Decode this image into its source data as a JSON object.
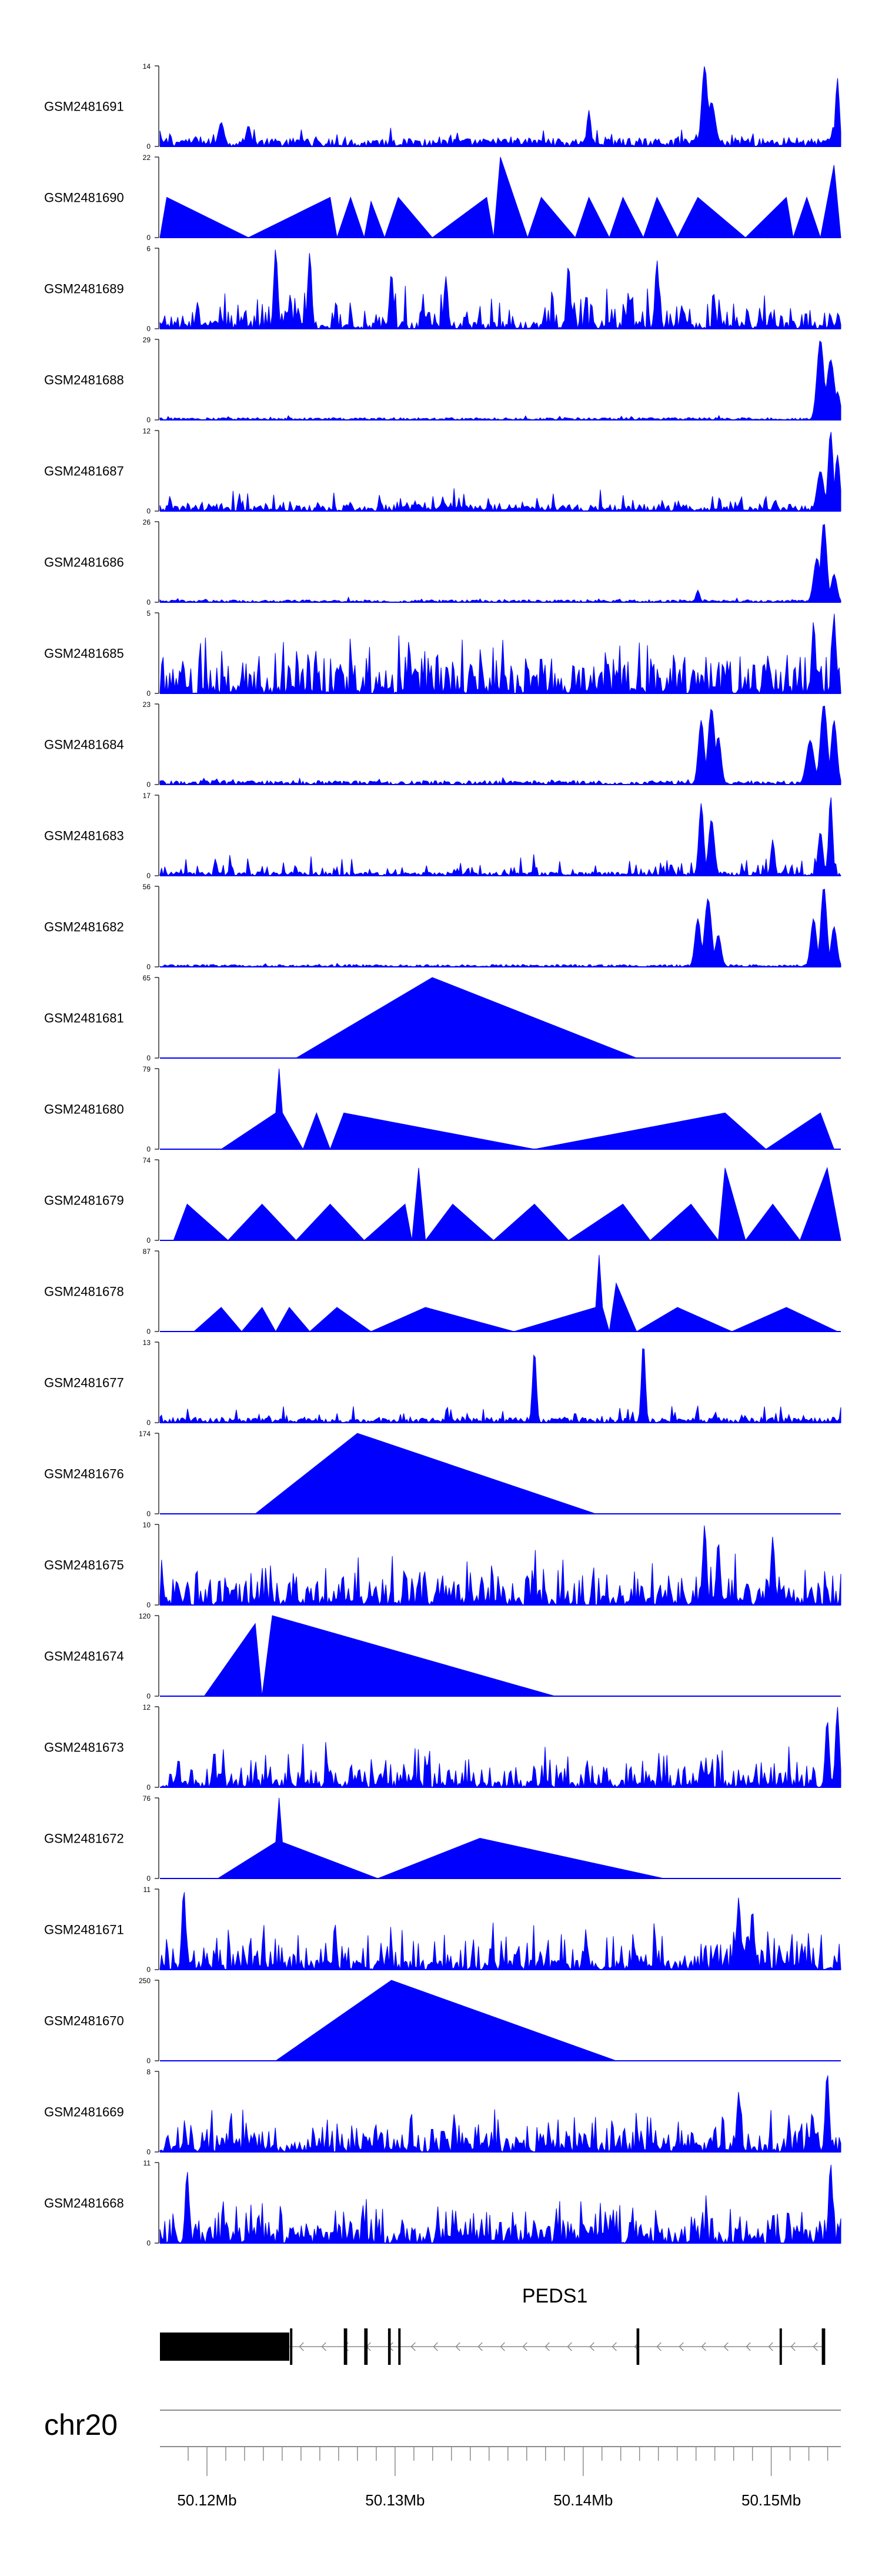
{
  "chart_data": {
    "type": "area",
    "title": "",
    "fill_color": "#0000ff",
    "genomic_range_mb": [
      50.1175,
      50.1537
    ],
    "tracks": [
      {
        "name": "GSM2481691",
        "ymax": 14,
        "ymin": 0,
        "style": "noise",
        "base": 0.1,
        "spike_rate": 0.2,
        "spike_height": 0.25,
        "peaks": [
          [
            0.09,
            0.3,
            0.006
          ],
          [
            0.13,
            0.26,
            0.005
          ],
          [
            0.63,
            0.45,
            0.004
          ],
          [
            0.8,
            1.0,
            0.006
          ],
          [
            0.81,
            0.55,
            0.008
          ],
          [
            0.995,
            0.85,
            0.004
          ]
        ]
      },
      {
        "name": "GSM2481690",
        "ymax": 22,
        "ymin": 0,
        "style": "tri",
        "pts": [
          [
            0.0,
            0
          ],
          [
            0.01,
            0.5
          ],
          [
            0.13,
            0
          ],
          [
            0.25,
            0.5
          ],
          [
            0.26,
            0
          ],
          [
            0.28,
            0.5
          ],
          [
            0.3,
            0
          ],
          [
            0.31,
            0.45
          ],
          [
            0.33,
            0
          ],
          [
            0.35,
            0.5
          ],
          [
            0.4,
            0
          ],
          [
            0.48,
            0.5
          ],
          [
            0.49,
            0
          ],
          [
            0.5,
            1.0
          ],
          [
            0.54,
            0
          ],
          [
            0.56,
            0.5
          ],
          [
            0.61,
            0
          ],
          [
            0.63,
            0.5
          ],
          [
            0.66,
            0
          ],
          [
            0.68,
            0.5
          ],
          [
            0.71,
            0
          ],
          [
            0.73,
            0.5
          ],
          [
            0.76,
            0
          ],
          [
            0.79,
            0.5
          ],
          [
            0.86,
            0
          ],
          [
            0.92,
            0.5
          ],
          [
            0.93,
            0
          ],
          [
            0.95,
            0.5
          ],
          [
            0.97,
            0
          ],
          [
            0.99,
            0.9
          ],
          [
            1.0,
            0
          ]
        ]
      },
      {
        "name": "GSM2481689",
        "ymax": 6,
        "ymin": 0,
        "style": "noise",
        "base": 0.1,
        "spike_rate": 0.35,
        "spike_height": 0.55,
        "peaks": [
          [
            0.17,
            1.0,
            0.004
          ],
          [
            0.22,
            0.95,
            0.004
          ],
          [
            0.34,
            0.7,
            0.004
          ],
          [
            0.42,
            0.65,
            0.004
          ],
          [
            0.6,
            0.8,
            0.004
          ],
          [
            0.73,
            0.85,
            0.004
          ]
        ]
      },
      {
        "name": "GSM2481688",
        "ymax": 29,
        "ymin": 0,
        "style": "noise",
        "base": 0.03,
        "spike_rate": 0.06,
        "spike_height": 0.08,
        "peaks": [
          [
            0.97,
            1.0,
            0.007
          ],
          [
            0.985,
            0.75,
            0.008
          ],
          [
            0.995,
            0.35,
            0.006
          ]
        ]
      },
      {
        "name": "GSM2481687",
        "ymax": 12,
        "ymin": 0,
        "style": "noise",
        "base": 0.08,
        "spike_rate": 0.22,
        "spike_height": 0.3,
        "peaks": [
          [
            0.97,
            0.5,
            0.007
          ],
          [
            0.985,
            1.0,
            0.005
          ],
          [
            0.995,
            0.7,
            0.005
          ]
        ]
      },
      {
        "name": "GSM2481686",
        "ymax": 26,
        "ymin": 0,
        "style": "noise",
        "base": 0.03,
        "spike_rate": 0.06,
        "spike_height": 0.1,
        "peaks": [
          [
            0.79,
            0.15,
            0.004
          ],
          [
            0.965,
            0.55,
            0.007
          ],
          [
            0.975,
            1.0,
            0.006
          ],
          [
            0.99,
            0.35,
            0.006
          ]
        ]
      },
      {
        "name": "GSM2481685",
        "ymax": 5,
        "ymin": 0,
        "style": "noise",
        "base": 0.1,
        "spike_rate": 0.55,
        "spike_height": 0.75,
        "peaks": [
          [
            0.96,
            0.9,
            0.004
          ],
          [
            0.99,
            1.0,
            0.004
          ]
        ]
      },
      {
        "name": "GSM2481684",
        "ymax": 23,
        "ymin": 0,
        "style": "noise",
        "base": 0.05,
        "spike_rate": 0.08,
        "spike_height": 0.1,
        "peaks": [
          [
            0.795,
            0.8,
            0.006
          ],
          [
            0.81,
            0.95,
            0.007
          ],
          [
            0.82,
            0.6,
            0.006
          ],
          [
            0.955,
            0.55,
            0.008
          ],
          [
            0.975,
            1.0,
            0.007
          ],
          [
            0.99,
            0.8,
            0.006
          ]
        ]
      },
      {
        "name": "GSM2481683",
        "ymax": 17,
        "ymin": 0,
        "style": "noise",
        "base": 0.05,
        "spike_rate": 0.22,
        "spike_height": 0.3,
        "peaks": [
          [
            0.795,
            0.9,
            0.005
          ],
          [
            0.81,
            0.7,
            0.006
          ],
          [
            0.9,
            0.45,
            0.004
          ],
          [
            0.97,
            0.55,
            0.005
          ],
          [
            0.985,
            1.0,
            0.004
          ]
        ]
      },
      {
        "name": "GSM2481682",
        "ymax": 56,
        "ymin": 0,
        "style": "noise",
        "base": 0.03,
        "spike_rate": 0.05,
        "spike_height": 0.06,
        "peaks": [
          [
            0.79,
            0.6,
            0.006
          ],
          [
            0.805,
            0.85,
            0.007
          ],
          [
            0.82,
            0.4,
            0.006
          ],
          [
            0.96,
            0.6,
            0.006
          ],
          [
            0.975,
            1.0,
            0.006
          ],
          [
            0.99,
            0.5,
            0.006
          ]
        ]
      },
      {
        "name": "GSM2481681",
        "ymax": 65,
        "ymin": 0,
        "style": "tri",
        "pts": [
          [
            0.2,
            0
          ],
          [
            0.4,
            1.0
          ],
          [
            0.7,
            0
          ]
        ]
      },
      {
        "name": "GSM2481680",
        "ymax": 79,
        "ymin": 0,
        "style": "tri",
        "pts": [
          [
            0.09,
            0
          ],
          [
            0.17,
            0.45
          ],
          [
            0.175,
            1.0
          ],
          [
            0.18,
            0.45
          ],
          [
            0.21,
            0
          ],
          [
            0.23,
            0.45
          ],
          [
            0.25,
            0
          ],
          [
            0.27,
            0.45
          ],
          [
            0.55,
            0
          ],
          [
            0.83,
            0.45
          ],
          [
            0.89,
            0
          ],
          [
            0.97,
            0.45
          ],
          [
            0.99,
            0
          ]
        ]
      },
      {
        "name": "GSM2481679",
        "ymax": 74,
        "ymin": 0,
        "style": "tri",
        "pts": [
          [
            0.02,
            0
          ],
          [
            0.04,
            0.45
          ],
          [
            0.1,
            0
          ],
          [
            0.15,
            0.45
          ],
          [
            0.2,
            0
          ],
          [
            0.25,
            0.45
          ],
          [
            0.3,
            0
          ],
          [
            0.36,
            0.45
          ],
          [
            0.37,
            0
          ],
          [
            0.38,
            0.9
          ],
          [
            0.39,
            0
          ],
          [
            0.43,
            0.45
          ],
          [
            0.49,
            0
          ],
          [
            0.55,
            0.45
          ],
          [
            0.6,
            0
          ],
          [
            0.68,
            0.45
          ],
          [
            0.72,
            0
          ],
          [
            0.78,
            0.45
          ],
          [
            0.82,
            0
          ],
          [
            0.83,
            0.9
          ],
          [
            0.86,
            0
          ],
          [
            0.9,
            0.45
          ],
          [
            0.94,
            0
          ],
          [
            0.98,
            0.9
          ],
          [
            1.0,
            0
          ]
        ]
      },
      {
        "name": "GSM2481678",
        "ymax": 87,
        "ymin": 0,
        "style": "tri",
        "pts": [
          [
            0.05,
            0
          ],
          [
            0.09,
            0.3
          ],
          [
            0.12,
            0
          ],
          [
            0.15,
            0.3
          ],
          [
            0.17,
            0
          ],
          [
            0.19,
            0.3
          ],
          [
            0.22,
            0
          ],
          [
            0.26,
            0.3
          ],
          [
            0.31,
            0
          ],
          [
            0.39,
            0.3
          ],
          [
            0.52,
            0
          ],
          [
            0.64,
            0.3
          ],
          [
            0.645,
            0.95
          ],
          [
            0.65,
            0.3
          ],
          [
            0.66,
            0
          ],
          [
            0.67,
            0.6
          ],
          [
            0.7,
            0
          ],
          [
            0.76,
            0.3
          ],
          [
            0.84,
            0
          ],
          [
            0.92,
            0.3
          ],
          [
            0.995,
            0
          ]
        ]
      },
      {
        "name": "GSM2481677",
        "ymax": 13,
        "ymin": 0,
        "style": "noise",
        "base": 0.06,
        "spike_rate": 0.18,
        "spike_height": 0.25,
        "peaks": [
          [
            0.55,
            0.9,
            0.004
          ],
          [
            0.71,
            1.0,
            0.004
          ]
        ]
      },
      {
        "name": "GSM2481676",
        "ymax": 174,
        "ymin": 0,
        "style": "tri",
        "pts": [
          [
            0.14,
            0
          ],
          [
            0.29,
            1.0
          ],
          [
            0.64,
            0
          ]
        ]
      },
      {
        "name": "GSM2481675",
        "ymax": 10,
        "ymin": 0,
        "style": "noise",
        "base": 0.12,
        "spike_rate": 0.45,
        "spike_height": 0.7,
        "peaks": [
          [
            0.8,
            1.0,
            0.004
          ],
          [
            0.82,
            0.8,
            0.004
          ],
          [
            0.9,
            0.85,
            0.004
          ]
        ]
      },
      {
        "name": "GSM2481674",
        "ymax": 120,
        "ymin": 0,
        "style": "tri",
        "pts": [
          [
            0.065,
            0
          ],
          [
            0.14,
            0.9
          ],
          [
            0.15,
            0
          ],
          [
            0.165,
            1.0
          ],
          [
            0.58,
            0
          ]
        ]
      },
      {
        "name": "GSM2481673",
        "ymax": 12,
        "ymin": 0,
        "style": "noise",
        "base": 0.1,
        "spike_rate": 0.4,
        "spike_height": 0.6,
        "peaks": [
          [
            0.98,
            0.85,
            0.004
          ],
          [
            0.995,
            1.0,
            0.004
          ]
        ]
      },
      {
        "name": "GSM2481672",
        "ymax": 76,
        "ymin": 0,
        "style": "tri",
        "pts": [
          [
            0.085,
            0
          ],
          [
            0.17,
            0.45
          ],
          [
            0.175,
            1.0
          ],
          [
            0.18,
            0.45
          ],
          [
            0.32,
            0
          ],
          [
            0.47,
            0.5
          ],
          [
            0.74,
            0
          ]
        ]
      },
      {
        "name": "GSM2481671",
        "ymax": 11,
        "ymin": 0,
        "style": "noise",
        "base": 0.12,
        "spike_rate": 0.4,
        "spike_height": 0.65,
        "peaks": [
          [
            0.035,
            1.0,
            0.004
          ],
          [
            0.85,
            0.9,
            0.004
          ],
          [
            0.87,
            0.75,
            0.004
          ]
        ]
      },
      {
        "name": "GSM2481670",
        "ymax": 250,
        "ymin": 0,
        "style": "tri",
        "pts": [
          [
            0.17,
            0
          ],
          [
            0.34,
            1.0
          ],
          [
            0.67,
            0
          ]
        ]
      },
      {
        "name": "GSM2481669",
        "ymax": 8,
        "ymin": 0,
        "style": "noise",
        "base": 0.12,
        "spike_rate": 0.45,
        "spike_height": 0.6,
        "peaks": [
          [
            0.98,
            1.0,
            0.004
          ],
          [
            0.85,
            0.75,
            0.004
          ]
        ]
      },
      {
        "name": "GSM2481668",
        "ymax": 11,
        "ymin": 0,
        "style": "noise",
        "base": 0.15,
        "spike_rate": 0.45,
        "spike_height": 0.65,
        "peaks": [
          [
            0.04,
            0.9,
            0.004
          ],
          [
            0.985,
            1.0,
            0.004
          ]
        ]
      }
    ],
    "gene": {
      "name": "PEDS1",
      "strand": "-",
      "exons": [
        [
          0.0,
          0.19,
          "thick"
        ],
        [
          0.191,
          0.193
        ],
        [
          0.27,
          0.275
        ],
        [
          0.3,
          0.305
        ],
        [
          0.335,
          0.339
        ],
        [
          0.35,
          0.353
        ],
        [
          0.7,
          0.704
        ],
        [
          0.91,
          0.913
        ],
        [
          0.972,
          0.977
        ]
      ]
    },
    "axis": {
      "chromosome": "chr20",
      "ticks_mb": [
        50.119,
        50.12,
        50.121,
        50.122,
        50.123,
        50.124,
        50.125,
        50.126,
        50.127,
        50.128,
        50.129,
        50.13,
        50.131,
        50.132,
        50.133,
        50.134,
        50.135,
        50.136,
        50.137,
        50.138,
        50.139,
        50.14,
        50.141,
        50.142,
        50.143,
        50.144,
        50.145,
        50.146,
        50.147,
        50.148,
        50.149,
        50.15,
        50.151,
        50.152,
        50.153
      ],
      "major_ticks_mb": [
        50.12,
        50.13,
        50.14,
        50.15
      ],
      "labels": [
        "50.12Mb",
        "50.13Mb",
        "50.14Mb",
        "50.15Mb"
      ]
    }
  }
}
